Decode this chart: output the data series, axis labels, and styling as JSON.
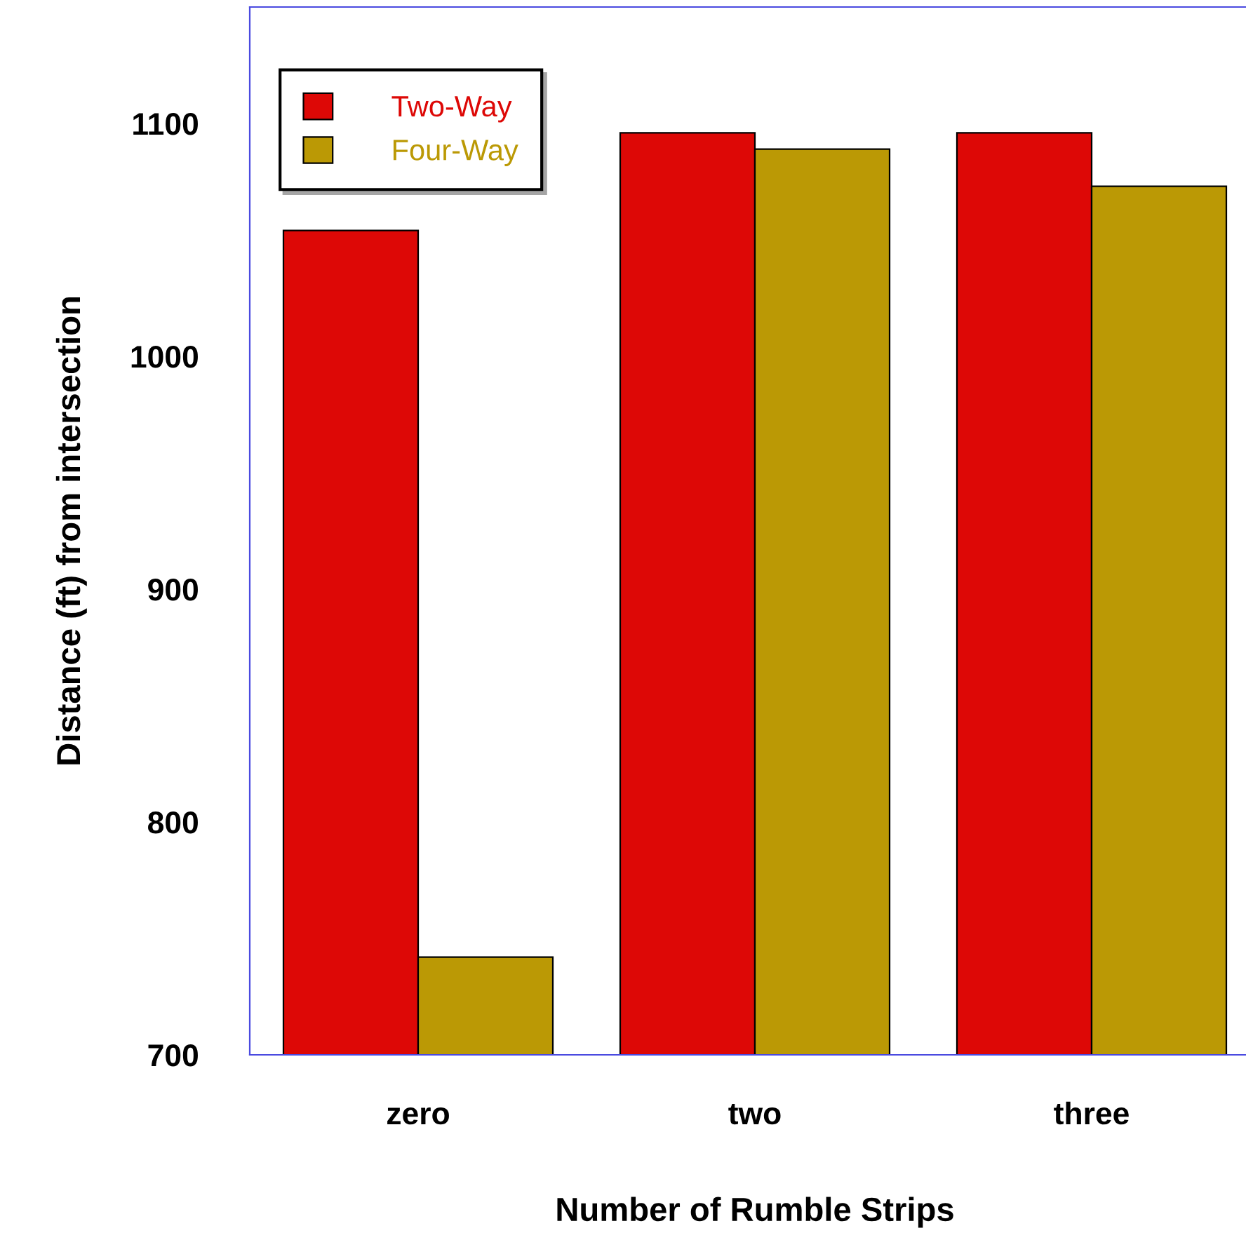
{
  "chart_data": {
    "type": "bar",
    "xlabel": "Number of Rumble Strips",
    "ylabel": "Distance (ft) from intersection",
    "categories": [
      "zero",
      "two",
      "three"
    ],
    "series": [
      {
        "name": "Two-Way",
        "color": "#dd0806",
        "values": [
          1054,
          1096,
          1096
        ]
      },
      {
        "name": "Four-Way",
        "color": "#bb9905",
        "values": [
          742,
          1089,
          1073
        ]
      }
    ],
    "ylim": [
      700,
      1150
    ],
    "yticks": [
      700,
      800,
      900,
      1000,
      1100
    ],
    "grid": false,
    "legend": "top left"
  }
}
